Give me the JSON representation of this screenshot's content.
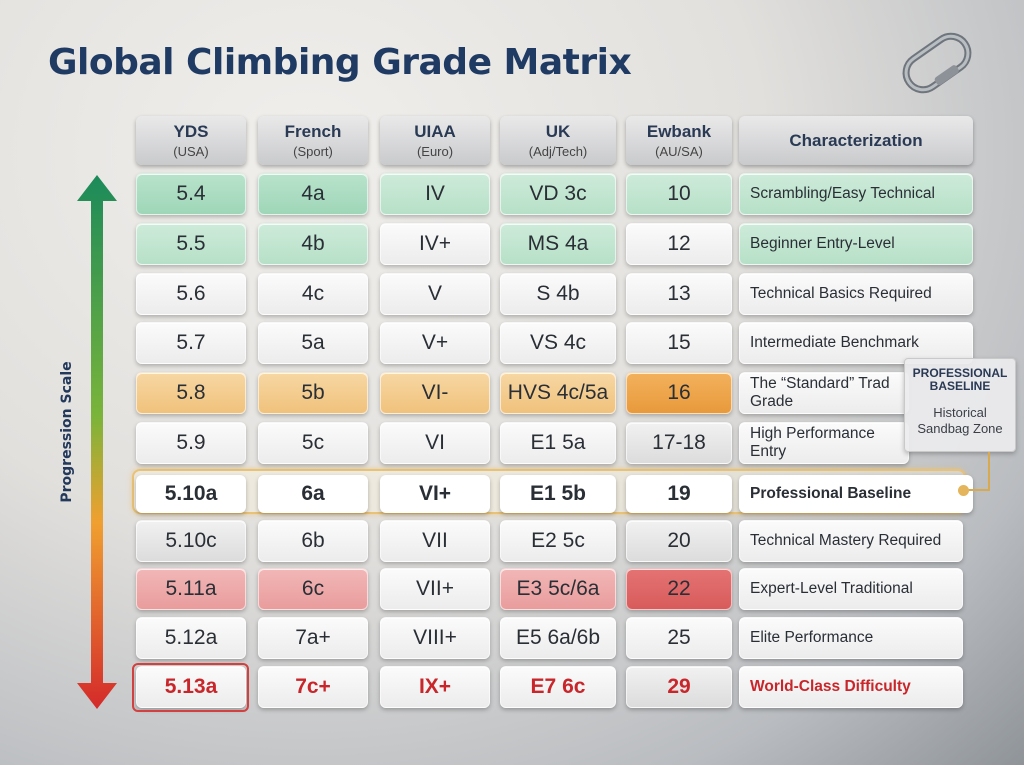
{
  "title": "Global Climbing Grade Matrix",
  "scale_label": "Progression Scale",
  "icons": [
    "carabiner-icon",
    "progression-arrow-icon"
  ],
  "colors": {
    "easy": "#9fd6b8",
    "benchmark": "#f0c27c",
    "expert": "#e99c9c",
    "extreme": "#c8262a",
    "highlight": "#e9c276"
  },
  "headers": [
    {
      "name": "YDS",
      "sub": "(USA)"
    },
    {
      "name": "French",
      "sub": "(Sport)"
    },
    {
      "name": "UIAA",
      "sub": "(Euro)"
    },
    {
      "name": "UK",
      "sub": "(Adj/Tech)"
    },
    {
      "name": "Ewbank",
      "sub": "(AU/SA)"
    },
    {
      "name": "Characterization",
      "sub": ""
    }
  ],
  "rows": [
    {
      "yds": "5.4",
      "french": "4a",
      "uiaa": "IV",
      "uk": "VD 3c",
      "ewbank": "10",
      "desc": "Scrambling/Easy Technical"
    },
    {
      "yds": "5.5",
      "french": "4b",
      "uiaa": "IV+",
      "uk": "MS 4a",
      "ewbank": "12",
      "desc": "Beginner Entry-Level"
    },
    {
      "yds": "5.6",
      "french": "4c",
      "uiaa": "V",
      "uk": "S 4b",
      "ewbank": "13",
      "desc": "Technical Basics Required"
    },
    {
      "yds": "5.7",
      "french": "5a",
      "uiaa": "V+",
      "uk": "VS 4c",
      "ewbank": "15",
      "desc": "Intermediate Benchmark"
    },
    {
      "yds": "5.8",
      "french": "5b",
      "uiaa": "VI-",
      "uk": "HVS 4c/5a",
      "ewbank": "16",
      "desc": "The “Standard” Trad Grade"
    },
    {
      "yds": "5.9",
      "french": "5c",
      "uiaa": "VI",
      "uk": "E1 5a",
      "ewbank": "17-18",
      "desc": "High Performance Entry"
    },
    {
      "yds": "5.10a",
      "french": "6a",
      "uiaa": "VI+",
      "uk": "E1 5b",
      "ewbank": "19",
      "desc": "Professional Baseline"
    },
    {
      "yds": "5.10c",
      "french": "6b",
      "uiaa": "VII",
      "uk": "E2 5c",
      "ewbank": "20",
      "desc": "Technical Mastery Required"
    },
    {
      "yds": "5.11a",
      "french": "6c",
      "uiaa": "VII+",
      "uk": "E3 5c/6a",
      "ewbank": "22",
      "desc": "Expert-Level Traditional"
    },
    {
      "yds": "5.12a",
      "french": "7a+",
      "uiaa": "VIII+",
      "uk": "E5 6a/6b",
      "ewbank": "25",
      "desc": "Elite Performance"
    },
    {
      "yds": "5.13a",
      "french": "7c+",
      "uiaa": "IX+",
      "uk": "E7 6c",
      "ewbank": "29",
      "desc": "World-Class Difficulty"
    }
  ],
  "callout": {
    "title": "PROFESSIONAL BASELINE",
    "note": "Historical Sandbag Zone"
  }
}
